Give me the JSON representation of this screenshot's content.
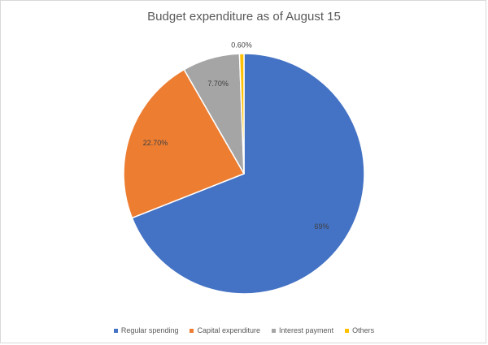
{
  "chart_data": {
    "type": "pie",
    "title": "Budget expenditure as of August 15",
    "categories": [
      "Regular spending",
      "Capital expenditure",
      "Interest payment",
      "Others"
    ],
    "values": [
      69,
      22.7,
      7.7,
      0.6
    ],
    "data_labels": [
      "69%",
      "22.70%",
      "7.70%",
      "0.60%"
    ],
    "colors": [
      "#4472c4",
      "#ed7d31",
      "#a5a5a5",
      "#ffc000"
    ],
    "legend_position": "bottom"
  }
}
